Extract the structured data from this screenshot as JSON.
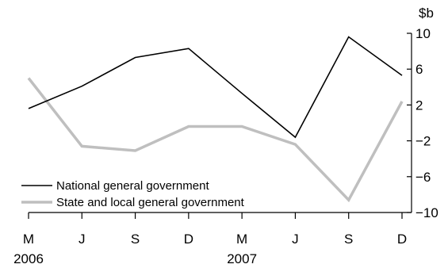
{
  "chart_data": {
    "type": "line",
    "title": "",
    "xlabel": "",
    "ylabel": "$b",
    "categories": [
      "M",
      "J",
      "S",
      "D",
      "M",
      "J",
      "S",
      "D"
    ],
    "year_labels": [
      {
        "index": 0,
        "label": "2006"
      },
      {
        "index": 4,
        "label": "2007"
      }
    ],
    "ylim": [
      -10,
      10
    ],
    "yticks": [
      "10",
      "6",
      "2",
      "−2",
      "−6",
      "−10"
    ],
    "ytick_values": [
      10,
      6,
      2,
      -2,
      -6,
      -10
    ],
    "grid": false,
    "legend_position": "bottom-left",
    "series": [
      {
        "name": "National general government",
        "color": "#000000",
        "values": [
          1.6,
          4.1,
          7.3,
          8.3,
          3.3,
          -1.6,
          9.6,
          5.3
        ]
      },
      {
        "name": "State and local general government",
        "color": "#bfbfbf",
        "values": [
          5.0,
          -2.6,
          -3.1,
          -0.4,
          -0.4,
          -2.4,
          -8.6,
          2.4
        ]
      }
    ]
  }
}
